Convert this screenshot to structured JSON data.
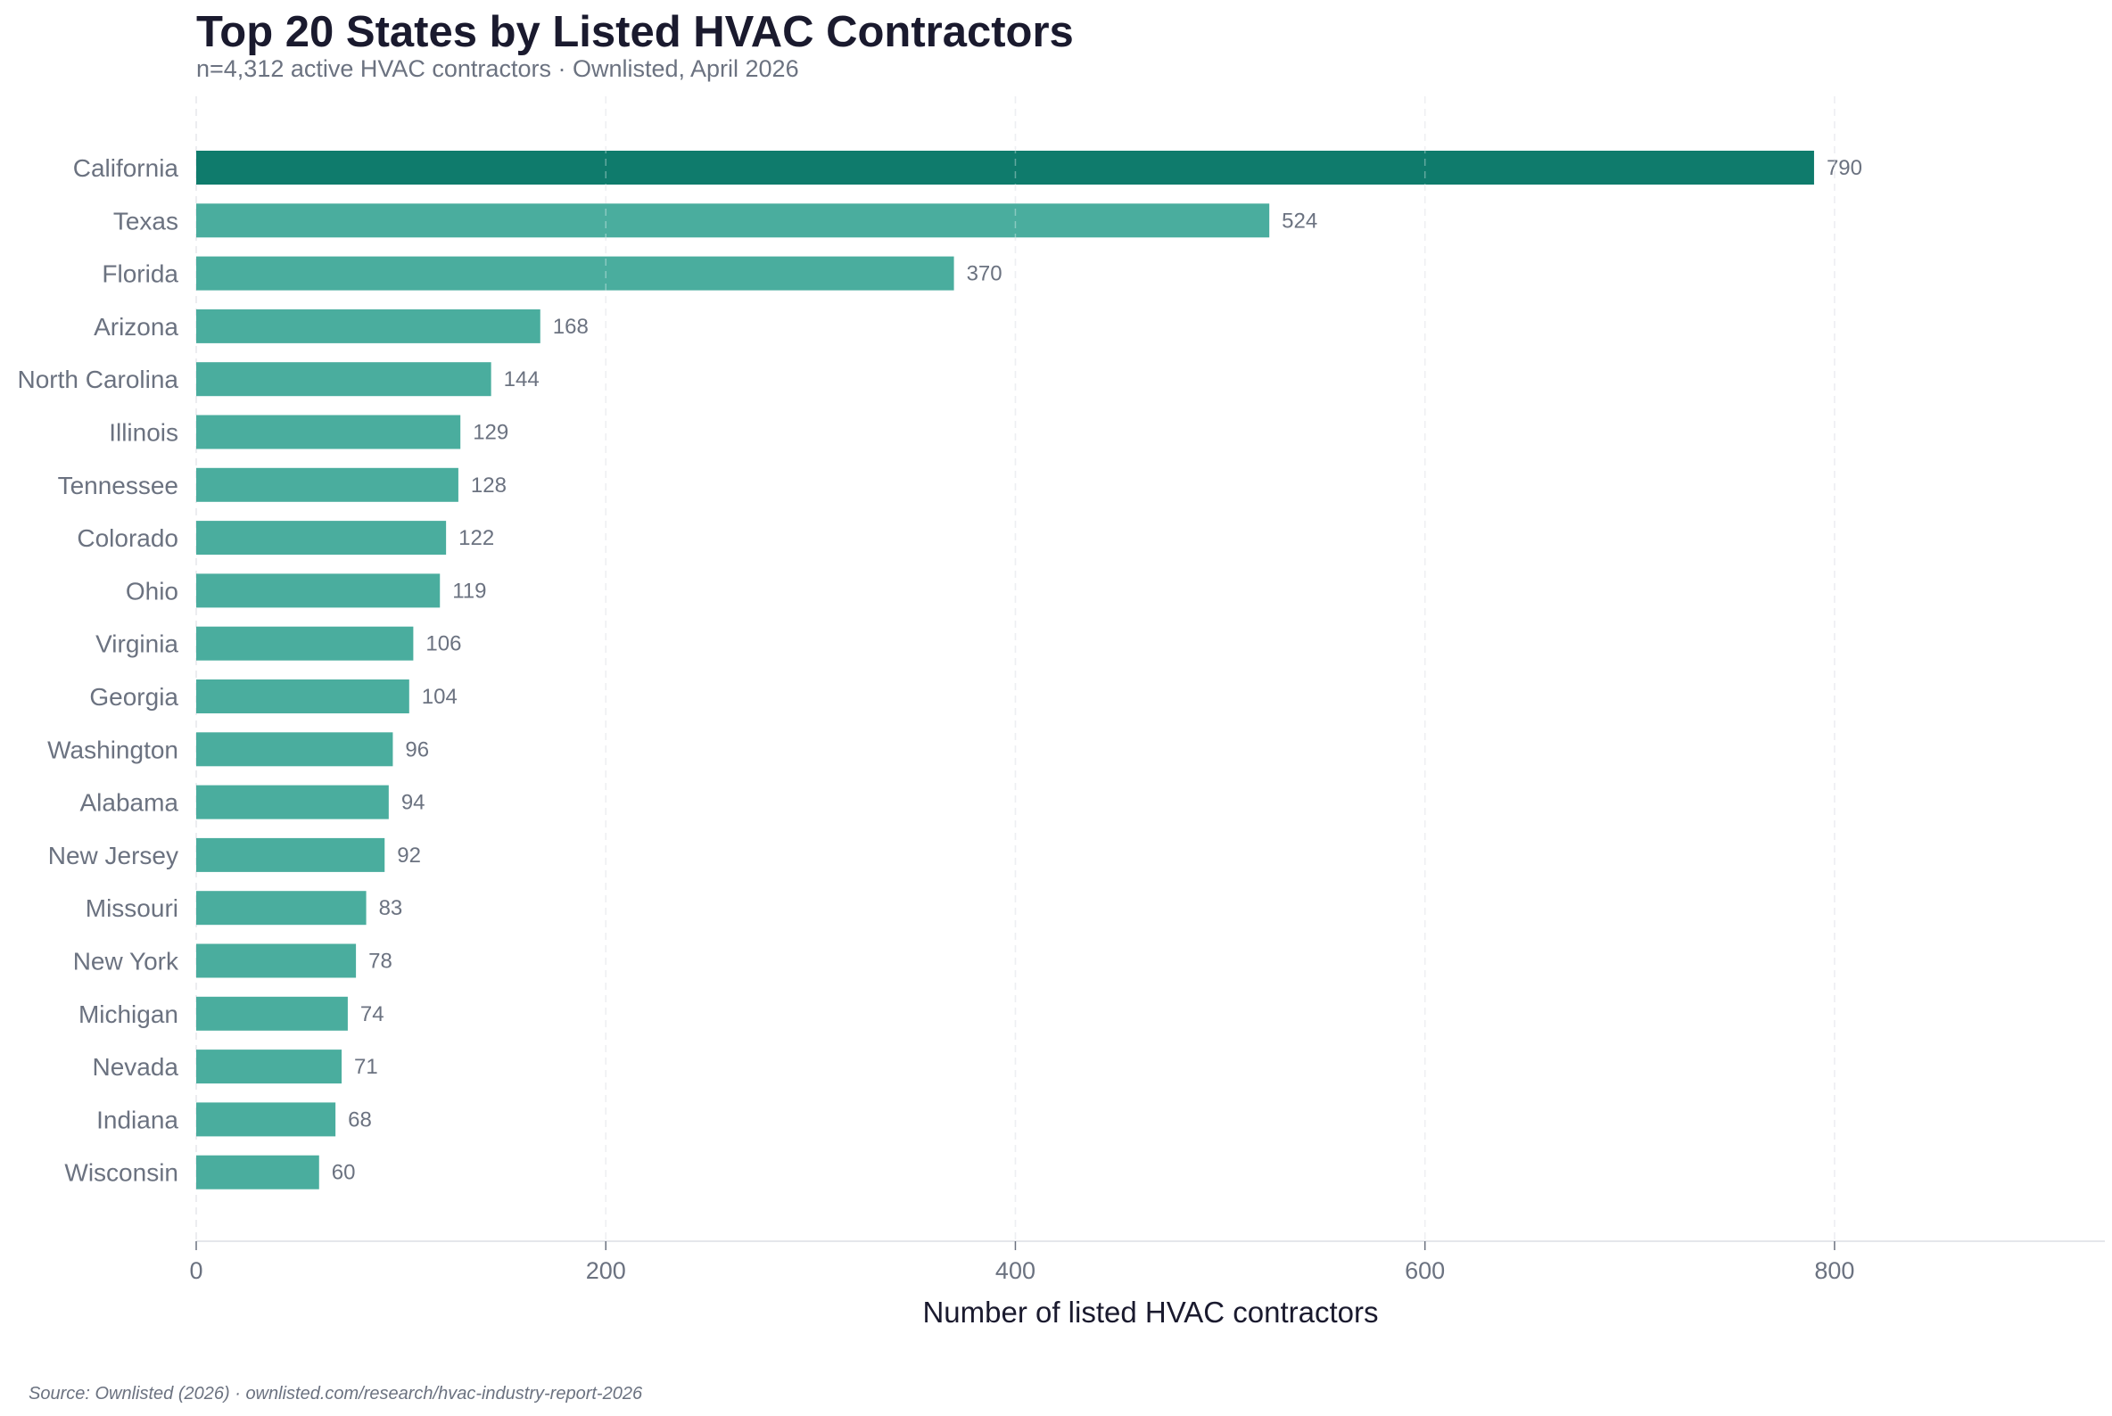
{
  "title": "Top 20 States by Listed HVAC Contractors",
  "subtitle": "n=4,312 active HVAC contractors · Ownlisted, April 2026",
  "source": "Source: Ownlisted (2026) · ownlisted.com/research/hvac-industry-report-2026",
  "colors": {
    "highlight": "#0f7b6c",
    "bar": "#4aad9e",
    "text": "#6b7280",
    "title": "#1a1a2e",
    "grid": "#e5e7eb"
  },
  "chart_data": {
    "type": "bar",
    "orientation": "horizontal",
    "title": "Top 20 States by Listed HVAC Contractors",
    "subtitle": "n=4,312 active HVAC contractors · Ownlisted, April 2026",
    "xlabel": "Number of listed HVAC contractors",
    "ylabel": "",
    "categories": [
      "California",
      "Texas",
      "Florida",
      "Arizona",
      "North Carolina",
      "Illinois",
      "Tennessee",
      "Colorado",
      "Ohio",
      "Virginia",
      "Georgia",
      "Washington",
      "Alabama",
      "New Jersey",
      "Missouri",
      "New York",
      "Michigan",
      "Nevada",
      "Indiana",
      "Wisconsin"
    ],
    "values": [
      790,
      524,
      370,
      168,
      144,
      129,
      128,
      122,
      119,
      106,
      104,
      96,
      94,
      92,
      83,
      78,
      74,
      71,
      68,
      60
    ],
    "xlim": [
      0,
      932
    ],
    "xticks": [
      0,
      200,
      400,
      600,
      800
    ],
    "grid": "vertical dashed",
    "highlighted_category": "California",
    "data_labels": true
  }
}
